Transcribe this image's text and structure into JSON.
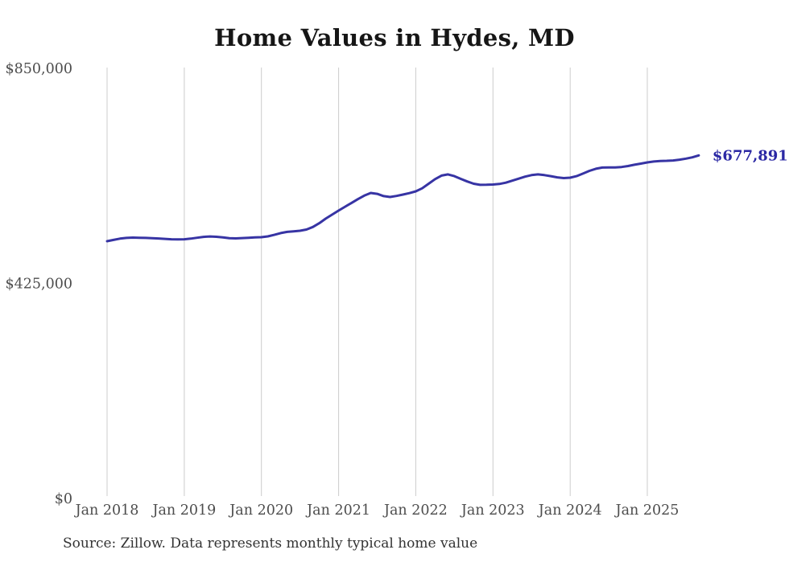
{
  "header": {
    "title": "Home Values in Hydes, MD"
  },
  "footer": {
    "source_note": "Source: Zillow. Data represents monthly typical home value"
  },
  "colors": {
    "line": "#3734a4",
    "end_label": "#2b28a4",
    "gridline": "#cccccc",
    "axis_text": "#4d4d4d",
    "title_text": "#161616",
    "background": "#ffffff"
  },
  "chart_data": {
    "type": "line",
    "title": "Home Values in Hydes, MD",
    "xlabel": "",
    "ylabel": "",
    "ylim": [
      0,
      850000
    ],
    "grid": "vertical-only",
    "legend": "none",
    "line_color": "#3734a4",
    "end_label": "$677,891",
    "end_value": 677891,
    "y_ticks": [
      {
        "label": "$0",
        "value": 0
      },
      {
        "label": "$425,000",
        "value": 425000
      },
      {
        "label": "$850,000",
        "value": 850000
      }
    ],
    "x_tick_labels": [
      "Jan 2018",
      "Jan 2019",
      "Jan 2020",
      "Jan 2021",
      "Jan 2022",
      "Jan 2023",
      "Jan 2024",
      "Jan 2025"
    ],
    "x": [
      "Jan 2018",
      "Feb 2018",
      "Mar 2018",
      "Apr 2018",
      "May 2018",
      "Jun 2018",
      "Jul 2018",
      "Aug 2018",
      "Sep 2018",
      "Oct 2018",
      "Nov 2018",
      "Dec 2018",
      "Jan 2019",
      "Feb 2019",
      "Mar 2019",
      "Apr 2019",
      "May 2019",
      "Jun 2019",
      "Jul 2019",
      "Aug 2019",
      "Sep 2019",
      "Oct 2019",
      "Nov 2019",
      "Dec 2019",
      "Jan 2020",
      "Feb 2020",
      "Mar 2020",
      "Apr 2020",
      "May 2020",
      "Jun 2020",
      "Jul 2020",
      "Aug 2020",
      "Sep 2020",
      "Oct 2020",
      "Nov 2020",
      "Dec 2020",
      "Jan 2021",
      "Feb 2021",
      "Mar 2021",
      "Apr 2021",
      "May 2021",
      "Jun 2021",
      "Jul 2021",
      "Aug 2021",
      "Sep 2021",
      "Oct 2021",
      "Nov 2021",
      "Dec 2021",
      "Jan 2022",
      "Feb 2022",
      "Mar 2022",
      "Apr 2022",
      "May 2022",
      "Jun 2022",
      "Jul 2022",
      "Aug 2022",
      "Sep 2022",
      "Oct 2022",
      "Nov 2022",
      "Dec 2022",
      "Jan 2023",
      "Feb 2023",
      "Mar 2023",
      "Apr 2023",
      "May 2023",
      "Jun 2023",
      "Jul 2023",
      "Aug 2023",
      "Sep 2023",
      "Oct 2023",
      "Nov 2023",
      "Dec 2023",
      "Jan 2024",
      "Feb 2024",
      "Mar 2024",
      "Apr 2024",
      "May 2024",
      "Jun 2024",
      "Jul 2024",
      "Aug 2024",
      "Sep 2024",
      "Oct 2024",
      "Nov 2024",
      "Dec 2024",
      "Jan 2025",
      "Feb 2025",
      "Mar 2025",
      "Apr 2025",
      "May 2025",
      "Jun 2025",
      "Jul 2025",
      "Aug 2025",
      "Sep 2025"
    ],
    "values": [
      508400,
      511000,
      513500,
      515000,
      515500,
      515300,
      515000,
      514300,
      513800,
      513000,
      512200,
      512000,
      512300,
      513500,
      515200,
      517000,
      517800,
      517200,
      516000,
      514500,
      514000,
      514600,
      515300,
      515900,
      516400,
      518000,
      521000,
      524500,
      526800,
      528000,
      529100,
      531500,
      536500,
      544000,
      553000,
      561000,
      568900,
      576500,
      584000,
      591500,
      598500,
      603700,
      602000,
      597500,
      595800,
      597800,
      600500,
      603500,
      606900,
      613000,
      622000,
      631000,
      638000,
      640400,
      637000,
      631500,
      626500,
      622000,
      619800,
      619900,
      620400,
      621500,
      624000,
      628000,
      632000,
      636000,
      639000,
      640400,
      639000,
      637000,
      634500,
      633200,
      634000,
      637000,
      642000,
      647500,
      651500,
      654000,
      654300,
      654200,
      655000,
      657000,
      659500,
      661800,
      664100,
      665800,
      666900,
      667300,
      668000,
      669500,
      671500,
      674200,
      677891
    ]
  }
}
